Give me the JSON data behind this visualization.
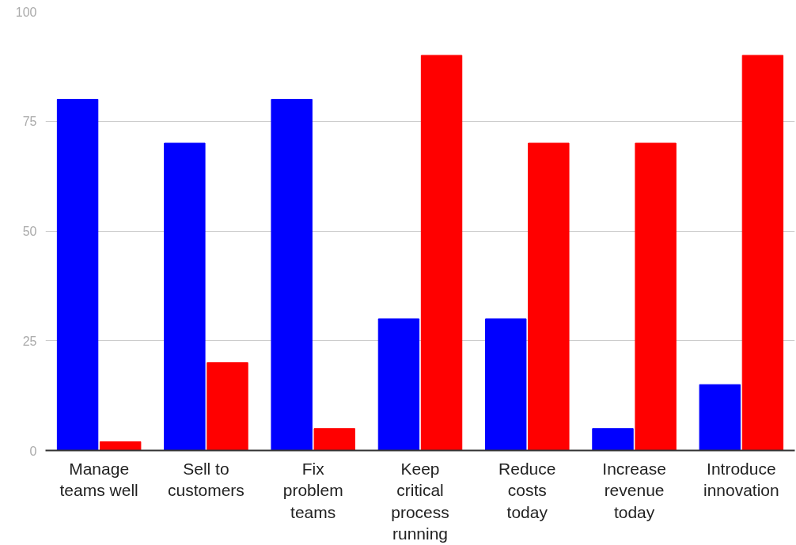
{
  "chart_data": {
    "type": "bar",
    "categories": [
      "Manage\nteams well",
      "Sell to\ncustomers",
      "Fix\nproblem\nteams",
      "Keep\ncritical\nprocess\nrunning",
      "Reduce\ncosts\ntoday",
      "Increase\nrevenue\ntoday",
      "Introduce\ninnovation"
    ],
    "series": [
      {
        "color": "#0000ff",
        "values": [
          80,
          70,
          80,
          30,
          30,
          5,
          15
        ]
      },
      {
        "color": "#ff0000",
        "values": [
          2,
          20,
          5,
          90,
          70,
          70,
          90
        ]
      }
    ],
    "ylim": [
      0,
      100
    ],
    "yticks": [
      0,
      25,
      50,
      75,
      100
    ],
    "grid": "y"
  }
}
